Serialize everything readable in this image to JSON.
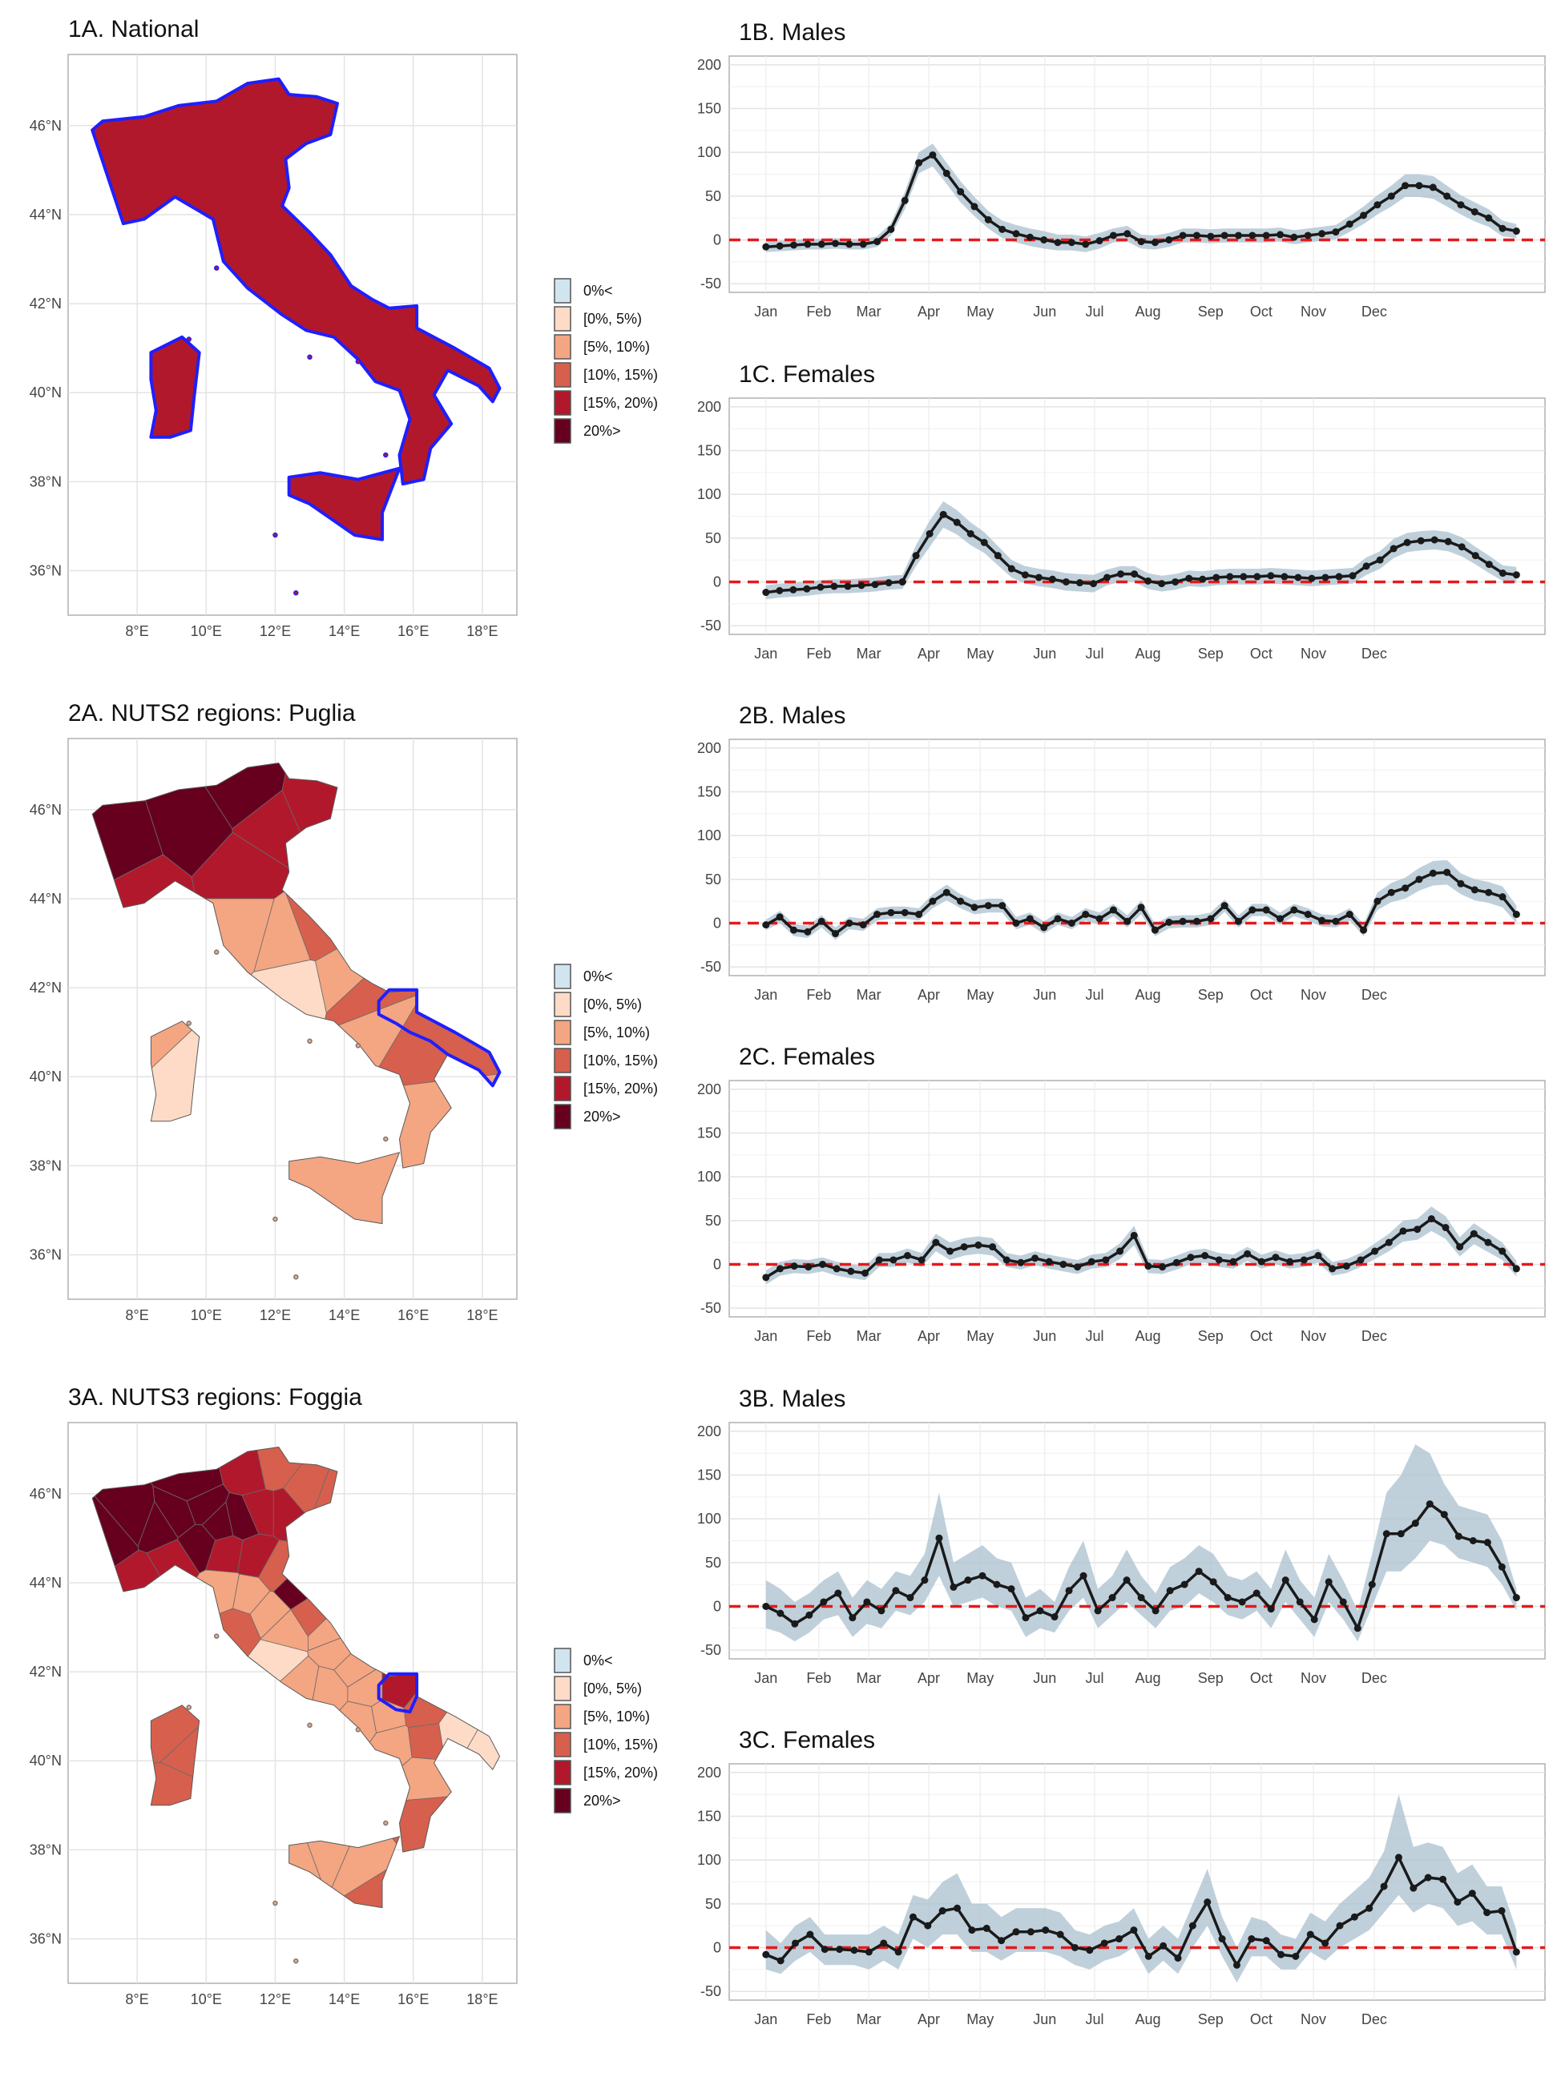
{
  "legend": {
    "labels": [
      "0%<",
      "[0%, 5%)",
      "[5%, 10%)",
      "[10%, 15%)",
      "[15%, 20%)",
      "20%>"
    ],
    "colors": [
      "#d1e5f0",
      "#fddbc7",
      "#f4a582",
      "#d6604d",
      "#b2182b",
      "#67001f"
    ]
  },
  "map_axes": {
    "x_labels": [
      "8°E",
      "10°E",
      "12°E",
      "14°E",
      "16°E",
      "18°E"
    ],
    "y_labels": [
      "46°N",
      "44°N",
      "42°N",
      "40°N",
      "38°N",
      "36°N"
    ]
  },
  "colors": {
    "line": "#1a1a1a",
    "band": "#a9c0cf",
    "zero_line": "#e41a1c",
    "highlight": "#1f1fff",
    "grid": "#e3e3e3",
    "panel_border": "#b0b0b0"
  },
  "maps": [
    {
      "title": "1A. National",
      "highlight": "Italy",
      "fill": "#b2182b"
    },
    {
      "title": "2A. NUTS2 regions: Puglia",
      "highlight": "Puglia"
    },
    {
      "title": "3A. NUTS3 regions: Foggia",
      "highlight": "Foggia"
    }
  ],
  "chart_data": [
    {
      "type": "line",
      "title": "1B. Males",
      "xlabels": [
        "Jan",
        "Feb",
        "Mar",
        "Apr",
        "May",
        "Jun",
        "Jul",
        "Aug",
        "Sep",
        "Oct",
        "Nov",
        "Dec"
      ],
      "yticks": [
        -50,
        0,
        50,
        100,
        150,
        200
      ],
      "ylim": [
        -60,
        210
      ],
      "reference_line": 0,
      "values": [
        -8,
        -7,
        -6,
        -5,
        -5,
        -4,
        -5,
        -5,
        -2,
        12,
        45,
        88,
        97,
        76,
        55,
        38,
        23,
        12,
        7,
        3,
        0,
        -3,
        -3,
        -5,
        -1,
        5,
        7,
        -2,
        -3,
        0,
        5,
        5,
        4,
        5,
        5,
        5,
        5,
        6,
        3,
        5,
        7,
        9,
        18,
        28,
        40,
        50,
        62,
        62,
        60,
        50,
        40,
        32,
        25,
        13,
        10
      ],
      "lower": [
        -14,
        -13,
        -12,
        -11,
        -11,
        -10,
        -11,
        -11,
        -8,
        5,
        35,
        76,
        84,
        64,
        43,
        27,
        13,
        2,
        -3,
        -7,
        -10,
        -12,
        -12,
        -14,
        -10,
        -3,
        -2,
        -10,
        -11,
        -8,
        -3,
        -3,
        -4,
        -3,
        -3,
        -3,
        -3,
        -2,
        -5,
        -3,
        -1,
        1,
        9,
        18,
        29,
        38,
        49,
        49,
        47,
        38,
        29,
        21,
        15,
        4,
        2
      ],
      "upper": [
        -2,
        -1,
        0,
        1,
        1,
        2,
        1,
        1,
        4,
        19,
        55,
        100,
        110,
        88,
        67,
        49,
        33,
        22,
        17,
        13,
        10,
        6,
        6,
        4,
        8,
        13,
        16,
        6,
        5,
        8,
        13,
        13,
        12,
        13,
        13,
        13,
        13,
        14,
        11,
        13,
        15,
        17,
        27,
        38,
        51,
        62,
        75,
        75,
        73,
        62,
        51,
        43,
        35,
        22,
        18
      ]
    },
    {
      "type": "line",
      "title": "1C. Females",
      "xlabels": [
        "Jan",
        "Feb",
        "Mar",
        "Apr",
        "May",
        "Jun",
        "Jul",
        "Aug",
        "Sep",
        "Oct",
        "Nov",
        "Dec"
      ],
      "yticks": [
        -50,
        0,
        50,
        100,
        150,
        200
      ],
      "ylim": [
        -60,
        210
      ],
      "reference_line": 0,
      "values": [
        -12,
        -10,
        -9,
        -8,
        -6,
        -5,
        -5,
        -4,
        -3,
        -1,
        0,
        30,
        55,
        77,
        68,
        55,
        45,
        30,
        15,
        8,
        5,
        3,
        0,
        -1,
        -2,
        5,
        9,
        9,
        1,
        -2,
        0,
        4,
        3,
        5,
        6,
        6,
        6,
        7,
        6,
        5,
        4,
        5,
        6,
        7,
        18,
        25,
        38,
        45,
        47,
        48,
        46,
        40,
        30,
        20,
        10,
        8
      ],
      "lower": [
        -20,
        -18,
        -17,
        -16,
        -14,
        -13,
        -13,
        -12,
        -11,
        -9,
        -8,
        18,
        40,
        62,
        54,
        42,
        33,
        19,
        5,
        -2,
        -5,
        -7,
        -10,
        -11,
        -12,
        -4,
        0,
        0,
        -8,
        -11,
        -9,
        -5,
        -6,
        -4,
        -3,
        -3,
        -3,
        -2,
        -3,
        -4,
        -5,
        -4,
        -3,
        -2,
        8,
        15,
        27,
        34,
        36,
        37,
        35,
        29,
        20,
        10,
        1,
        -1
      ],
      "upper": [
        -4,
        -2,
        -1,
        0,
        2,
        3,
        3,
        4,
        5,
        7,
        8,
        42,
        70,
        92,
        82,
        68,
        57,
        41,
        25,
        18,
        15,
        13,
        10,
        9,
        8,
        14,
        18,
        18,
        10,
        7,
        9,
        13,
        12,
        14,
        15,
        15,
        15,
        16,
        15,
        14,
        13,
        14,
        15,
        16,
        28,
        35,
        49,
        56,
        58,
        59,
        57,
        51,
        40,
        30,
        19,
        17
      ]
    },
    {
      "type": "line",
      "title": "2B. Males",
      "xlabels": [
        "Jan",
        "Feb",
        "Mar",
        "Apr",
        "May",
        "Jun",
        "Jul",
        "Aug",
        "Sep",
        "Oct",
        "Nov",
        "Dec"
      ],
      "yticks": [
        -50,
        0,
        50,
        100,
        150,
        200
      ],
      "ylim": [
        -60,
        210
      ],
      "reference_line": 0,
      "values": [
        -2,
        7,
        -8,
        -10,
        2,
        -12,
        0,
        -2,
        10,
        12,
        12,
        10,
        25,
        35,
        25,
        18,
        20,
        20,
        0,
        5,
        -5,
        5,
        0,
        10,
        5,
        15,
        2,
        18,
        -8,
        1,
        2,
        2,
        5,
        20,
        2,
        15,
        15,
        5,
        15,
        10,
        3,
        2,
        10,
        -8,
        25,
        35,
        40,
        50,
        57,
        58,
        45,
        38,
        35,
        30,
        10
      ],
      "lower": [
        -8,
        0,
        -15,
        -17,
        -5,
        -19,
        -7,
        -9,
        3,
        5,
        5,
        3,
        17,
        26,
        17,
        10,
        12,
        12,
        -7,
        -2,
        -12,
        -2,
        -7,
        3,
        -2,
        8,
        -5,
        10,
        -15,
        -6,
        -5,
        -5,
        -2,
        13,
        -5,
        8,
        8,
        -2,
        8,
        3,
        -4,
        -5,
        3,
        -15,
        15,
        24,
        28,
        37,
        43,
        44,
        33,
        26,
        23,
        18,
        0
      ],
      "upper": [
        4,
        14,
        -1,
        -3,
        9,
        -5,
        7,
        5,
        17,
        19,
        19,
        17,
        33,
        44,
        33,
        26,
        28,
        28,
        7,
        12,
        2,
        12,
        7,
        17,
        12,
        22,
        9,
        26,
        -1,
        8,
        9,
        9,
        12,
        27,
        9,
        22,
        22,
        12,
        22,
        17,
        10,
        9,
        17,
        -1,
        35,
        46,
        52,
        63,
        71,
        72,
        57,
        50,
        47,
        42,
        20
      ]
    },
    {
      "type": "line",
      "title": "2C. Females",
      "xlabels": [
        "Jan",
        "Feb",
        "Mar",
        "Apr",
        "May",
        "Jun",
        "Jul",
        "Aug",
        "Sep",
        "Oct",
        "Nov",
        "Dec"
      ],
      "yticks": [
        -50,
        0,
        50,
        100,
        150,
        200
      ],
      "ylim": [
        -60,
        210
      ],
      "reference_line": 0,
      "values": [
        -15,
        -5,
        -2,
        -3,
        0,
        -5,
        -8,
        -10,
        5,
        5,
        10,
        5,
        25,
        15,
        20,
        22,
        20,
        5,
        2,
        7,
        3,
        0,
        -3,
        3,
        5,
        15,
        33,
        -2,
        -3,
        2,
        8,
        10,
        5,
        3,
        12,
        3,
        8,
        3,
        5,
        10,
        -5,
        -2,
        5,
        15,
        25,
        38,
        40,
        52,
        42,
        20,
        35,
        25,
        15,
        -5
      ],
      "lower": [
        -23,
        -13,
        -10,
        -11,
        -8,
        -13,
        -16,
        -18,
        -3,
        -3,
        2,
        -3,
        15,
        5,
        10,
        12,
        10,
        -3,
        -6,
        -1,
        -5,
        -8,
        -11,
        -5,
        -3,
        6,
        22,
        -10,
        -11,
        -6,
        0,
        2,
        -3,
        -5,
        4,
        -5,
        0,
        -5,
        -3,
        2,
        -13,
        -10,
        -3,
        6,
        15,
        26,
        28,
        38,
        29,
        9,
        23,
        14,
        5,
        -14
      ],
      "upper": [
        -7,
        3,
        6,
        5,
        8,
        3,
        0,
        -2,
        13,
        13,
        18,
        13,
        35,
        25,
        30,
        32,
        30,
        13,
        10,
        15,
        11,
        8,
        5,
        11,
        13,
        24,
        44,
        6,
        5,
        10,
        16,
        18,
        13,
        11,
        20,
        11,
        16,
        11,
        13,
        18,
        3,
        6,
        13,
        24,
        35,
        50,
        52,
        66,
        55,
        31,
        47,
        36,
        25,
        4
      ]
    },
    {
      "type": "line",
      "title": "3B. Males",
      "xlabels": [
        "Jan",
        "Feb",
        "Mar",
        "Apr",
        "May",
        "Jun",
        "Jul",
        "Aug",
        "Sep",
        "Oct",
        "Nov",
        "Dec"
      ],
      "yticks": [
        -50,
        0,
        50,
        100,
        150,
        200
      ],
      "ylim": [
        -60,
        210
      ],
      "reference_line": 0,
      "values": [
        0,
        -8,
        -20,
        -10,
        5,
        15,
        -13,
        5,
        -5,
        18,
        10,
        30,
        78,
        22,
        30,
        35,
        25,
        20,
        -13,
        -5,
        -12,
        18,
        35,
        -5,
        10,
        30,
        10,
        -5,
        18,
        25,
        40,
        28,
        10,
        5,
        15,
        -3,
        30,
        5,
        -15,
        28,
        5,
        -25,
        25,
        83,
        83,
        95,
        117,
        105,
        80,
        75,
        73,
        45,
        10
      ],
      "lower": [
        -25,
        -30,
        -40,
        -30,
        -15,
        -10,
        -35,
        -20,
        -25,
        -5,
        -10,
        5,
        35,
        0,
        5,
        10,
        0,
        -5,
        -35,
        -25,
        -30,
        -5,
        10,
        -25,
        -10,
        5,
        -10,
        -25,
        -5,
        0,
        15,
        5,
        -10,
        -15,
        -5,
        -25,
        5,
        -15,
        -35,
        5,
        -15,
        -40,
        0,
        40,
        40,
        55,
        75,
        70,
        55,
        50,
        45,
        25,
        -5
      ],
      "upper": [
        30,
        20,
        5,
        15,
        30,
        40,
        10,
        30,
        20,
        40,
        35,
        60,
        130,
        50,
        60,
        70,
        55,
        50,
        10,
        20,
        5,
        45,
        75,
        20,
        35,
        65,
        35,
        15,
        45,
        55,
        70,
        60,
        35,
        30,
        40,
        20,
        65,
        30,
        10,
        60,
        30,
        -5,
        60,
        130,
        150,
        185,
        175,
        140,
        115,
        110,
        105,
        75,
        20
      ]
    },
    {
      "type": "line",
      "title": "3C. Females",
      "xlabels": [
        "Jan",
        "Feb",
        "Mar",
        "Apr",
        "May",
        "Jun",
        "Jul",
        "Aug",
        "Sep",
        "Oct",
        "Nov",
        "Dec"
      ],
      "yticks": [
        -50,
        0,
        50,
        100,
        150,
        200
      ],
      "ylim": [
        -60,
        210
      ],
      "reference_line": 0,
      "values": [
        -8,
        -15,
        5,
        15,
        -2,
        -2,
        -3,
        -5,
        5,
        -5,
        35,
        25,
        42,
        45,
        20,
        22,
        8,
        18,
        18,
        20,
        15,
        0,
        -3,
        5,
        10,
        20,
        -10,
        2,
        -12,
        25,
        52,
        10,
        -20,
        10,
        8,
        -8,
        -10,
        15,
        5,
        25,
        35,
        45,
        70,
        103,
        68,
        80,
        78,
        52,
        62,
        40,
        42,
        -5
      ],
      "lower": [
        -25,
        -30,
        -15,
        -5,
        -20,
        -20,
        -20,
        -25,
        -15,
        -25,
        10,
        0,
        15,
        15,
        -5,
        -5,
        -15,
        -5,
        -5,
        -5,
        -10,
        -20,
        -25,
        -15,
        -10,
        0,
        -30,
        -15,
        -30,
        0,
        25,
        -10,
        -40,
        -10,
        -10,
        -25,
        -25,
        -5,
        -15,
        0,
        10,
        20,
        40,
        60,
        40,
        50,
        45,
        25,
        30,
        15,
        15,
        -25
      ],
      "upper": [
        20,
        5,
        25,
        35,
        15,
        15,
        15,
        15,
        25,
        15,
        60,
        55,
        75,
        85,
        50,
        50,
        35,
        45,
        45,
        45,
        40,
        20,
        15,
        25,
        30,
        45,
        10,
        25,
        10,
        50,
        90,
        35,
        0,
        35,
        30,
        15,
        10,
        40,
        30,
        50,
        65,
        80,
        110,
        175,
        115,
        120,
        115,
        85,
        95,
        70,
        70,
        20
      ]
    }
  ]
}
